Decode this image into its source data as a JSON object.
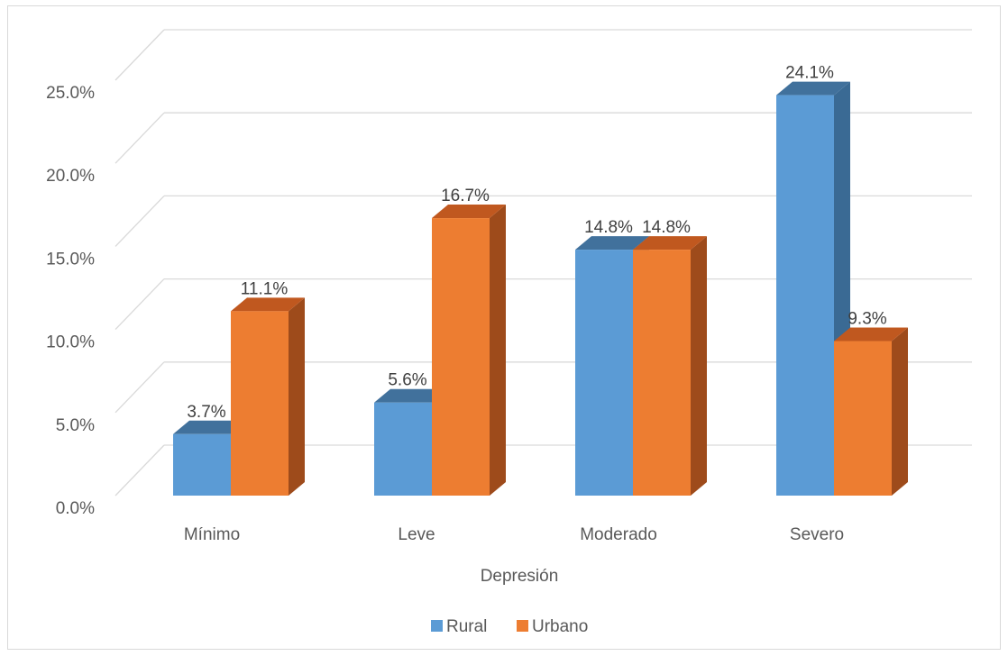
{
  "chart_data": {
    "type": "bar",
    "style": "3d-clustered-column",
    "categories": [
      "Mínimo",
      "Leve",
      "Moderado",
      "Severo"
    ],
    "series": [
      {
        "name": "Rural",
        "values": [
          3.7,
          5.6,
          14.8,
          24.1
        ],
        "labels": [
          "3.7%",
          "5.6%",
          "14.8%",
          "24.1%"
        ],
        "color": "#5b9bd5",
        "side_color": "#3a6a94",
        "top_color": "#41719c"
      },
      {
        "name": "Urbano",
        "values": [
          11.1,
          16.7,
          14.8,
          9.3
        ],
        "labels": [
          "11.1%",
          "16.7%",
          "14.8%",
          "9.3%"
        ],
        "color": "#ed7d31",
        "side_color": "#9e4b1b",
        "top_color": "#c0581f"
      }
    ],
    "title": "",
    "xlabel": "Depresión",
    "ylabel": "",
    "ylim": [
      0,
      25
    ],
    "yticks": [
      0,
      5,
      10,
      15,
      20,
      25
    ],
    "ytick_labels": [
      "0.0%",
      "5.0%",
      "10.0%",
      "15.0%",
      "20.0%",
      "25.0%"
    ],
    "grid": true,
    "legend": "bottom-center"
  }
}
